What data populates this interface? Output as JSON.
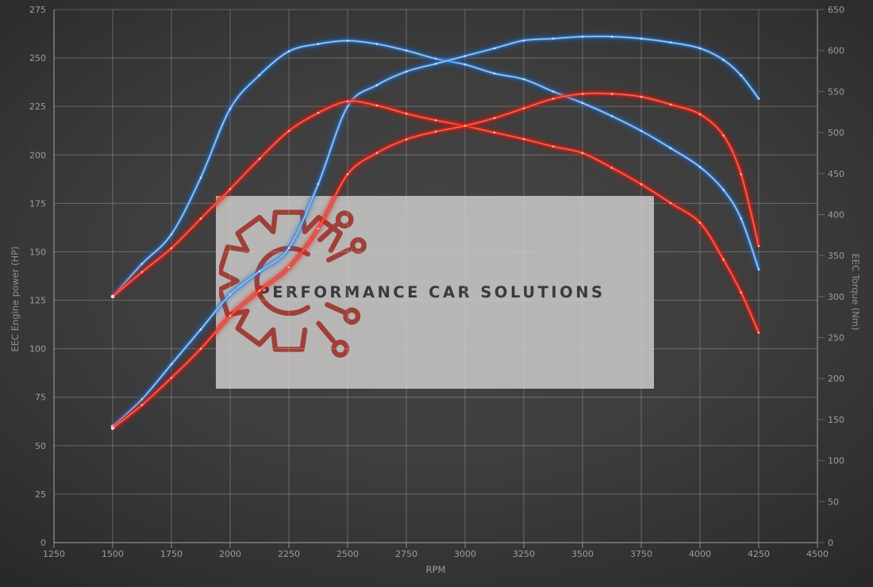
{
  "watermark": {
    "text": "PERFORMANCE CAR SOLUTIONS",
    "logo": "gear-circuit"
  },
  "colors": {
    "blue": "#5f9bd8",
    "blue_core": "#bdd9f4",
    "blue_glow": "rgba(40,115,215,0.55)",
    "blue_halo": "rgba(25,105,210,0.20)",
    "blue_dot": "#e3effb",
    "red": "#e6352a",
    "red_core": "#ff7d68",
    "red_glow": "rgba(225,35,25,0.60)",
    "red_halo": "rgba(215,25,15,0.22)",
    "red_dot": "#ffd3c7",
    "grid": "rgba(205,205,205,0.32)",
    "axis": "rgba(220,220,220,0.52)",
    "tick_label": "#9d9d9d",
    "axis_title": "#8f8f8f",
    "watermark_bg": "#cac8c5",
    "watermark_text": "#3a3a3e",
    "logo_red": "#9c372f"
  },
  "chart_data": {
    "type": "line",
    "title": "",
    "xlabel": "RPM",
    "ylabel_left": "EEC Engine power (HP)",
    "ylabel_right": "EEC Torque (Nm)",
    "grid": true,
    "legend": "none",
    "x_range": [
      1250,
      4500
    ],
    "y_left_range": [
      0,
      275
    ],
    "y_right_range": [
      0,
      650
    ],
    "x_ticks": [
      1250,
      1500,
      1750,
      2000,
      2250,
      2500,
      2750,
      3000,
      3250,
      3500,
      3750,
      4000,
      4250,
      4500
    ],
    "y_left_ticks": [
      0,
      25,
      50,
      75,
      100,
      125,
      150,
      175,
      200,
      225,
      250,
      275
    ],
    "y_right_ticks": [
      0,
      50,
      100,
      150,
      200,
      250,
      300,
      350,
      400,
      450,
      500,
      550,
      600,
      650
    ],
    "x": [
      1500,
      1625,
      1750,
      1875,
      2000,
      2125,
      2250,
      2375,
      2500,
      2625,
      2750,
      2875,
      3000,
      3125,
      3250,
      3375,
      3500,
      3625,
      3750,
      3875,
      4000,
      4100,
      4175,
      4250
    ],
    "series": [
      {
        "name": "blue-torque",
        "axis": "right",
        "color_key": "blue",
        "values": [
          300,
          340,
          376,
          445,
          529,
          570,
          599,
          608,
          612,
          608,
          600,
          590,
          583,
          572,
          565,
          550,
          536,
          520,
          502,
          481,
          458,
          430,
          395,
          333
        ]
      },
      {
        "name": "blue-power",
        "axis": "left",
        "color_key": "blue",
        "values": [
          60,
          74,
          92,
          110,
          128,
          140,
          152,
          185,
          225,
          236,
          243,
          247,
          251,
          255,
          259,
          260,
          261,
          261,
          260,
          258,
          255,
          249,
          241,
          229
        ]
      },
      {
        "name": "red-torque",
        "axis": "right",
        "color_key": "red",
        "values": [
          300,
          330,
          359,
          395,
          431,
          468,
          502,
          524,
          538,
          533,
          523,
          515,
          508,
          500,
          492,
          483,
          475,
          457,
          437,
          414,
          390,
          345,
          305,
          256
        ]
      },
      {
        "name": "red-power",
        "axis": "left",
        "color_key": "red",
        "values": [
          59,
          71,
          85,
          100,
          117,
          130,
          142,
          162,
          190,
          201,
          208,
          212,
          215,
          219,
          224,
          229,
          231.5,
          231.5,
          230,
          226,
          221,
          210,
          190,
          153
        ]
      }
    ]
  }
}
